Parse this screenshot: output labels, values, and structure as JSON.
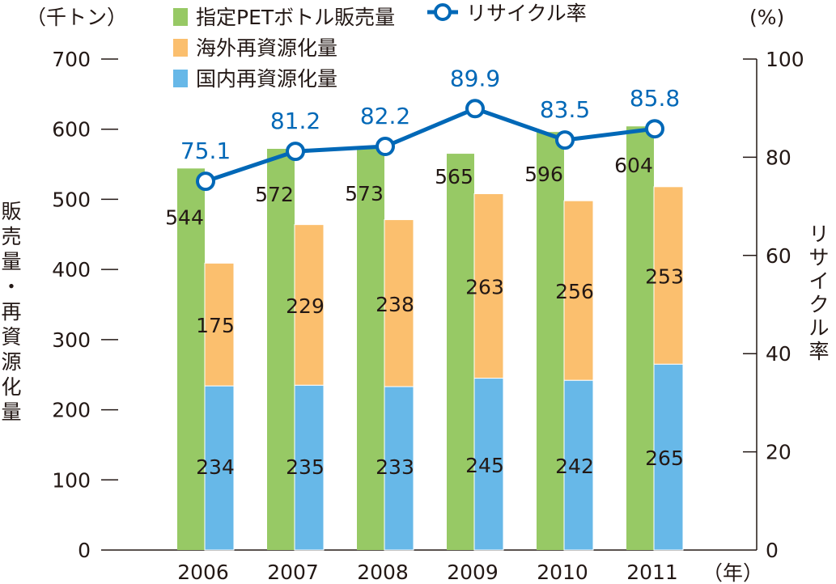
{
  "chart_data": {
    "type": "bar",
    "title": "",
    "categories": [
      "2006",
      "2007",
      "2008",
      "2009",
      "2010",
      "2011"
    ],
    "xlabel": "（年）",
    "ylabel": "販売量・再資源化量",
    "ylabel_unit": "（千トン）",
    "y2label": "リサイクル率",
    "y2label_unit": "(%)",
    "ylim": [
      0,
      700
    ],
    "y2lim": [
      0,
      100
    ],
    "yticks": [
      "0",
      "100",
      "200",
      "300",
      "400",
      "500",
      "600",
      "700"
    ],
    "y2ticks": [
      "0",
      "20",
      "40",
      "60",
      "80",
      "100"
    ],
    "series": [
      {
        "name": "指定PETボトル販売量",
        "type": "bar",
        "color": "#97c965",
        "values": [
          544,
          572,
          573,
          565,
          596,
          604
        ]
      },
      {
        "name": "海外再資源化量",
        "type": "bar",
        "stack": "recycled",
        "color": "#fbbf6e",
        "values": [
          175,
          229,
          238,
          263,
          256,
          253
        ]
      },
      {
        "name": "国内再資源化量",
        "type": "bar",
        "stack": "recycled",
        "color": "#67b8e8",
        "values": [
          234,
          235,
          233,
          245,
          242,
          265
        ]
      },
      {
        "name": "リサイクル率",
        "type": "line",
        "axis": "right",
        "color": "#0068b7",
        "values": [
          75.1,
          81.2,
          82.2,
          89.9,
          83.5,
          85.8
        ]
      }
    ],
    "legend": "top"
  }
}
